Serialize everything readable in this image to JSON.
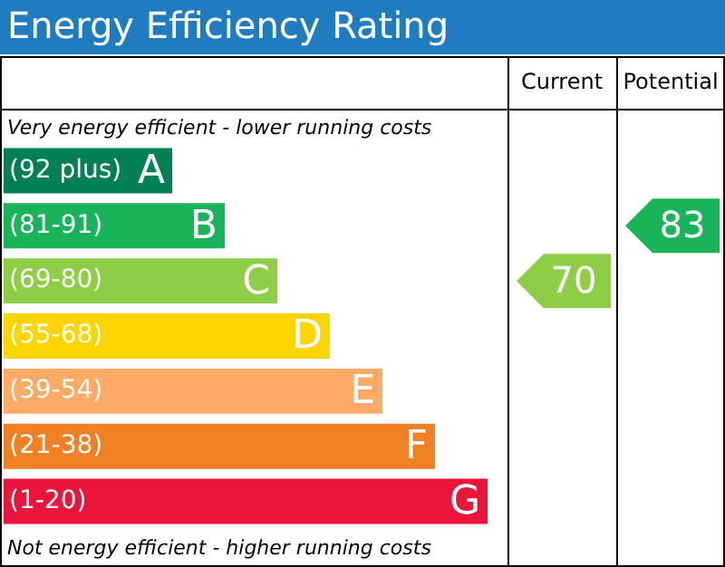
{
  "chart_data": {
    "type": "other",
    "title": "Energy Efficiency Rating",
    "categories": [
      "(92 plus)",
      "(81-91)",
      "(69-80)",
      "(55-68)",
      "(39-54)",
      "(21-38)",
      "(1-20)"
    ],
    "colors": [
      "#008054",
      "#19b459",
      "#8dce46",
      "#ffd500",
      "#fcaa65",
      "#ef8023",
      "#e9153b"
    ],
    "value_labels": [
      "A",
      "B",
      "C",
      "D",
      "E",
      "F",
      "G"
    ],
    "series": [
      {
        "values": [
          null,
          null,
          70,
          null,
          null,
          null,
          null
        ]
      },
      {
        "values": [
          null,
          83,
          null,
          null,
          null,
          null,
          null
        ]
      }
    ],
    "data_labels": true,
    "annotations": [
      "Very energy efficient - lower running costs",
      "Not energy efficient - higher running costs",
      "Current",
      "Potential"
    ]
  }
}
